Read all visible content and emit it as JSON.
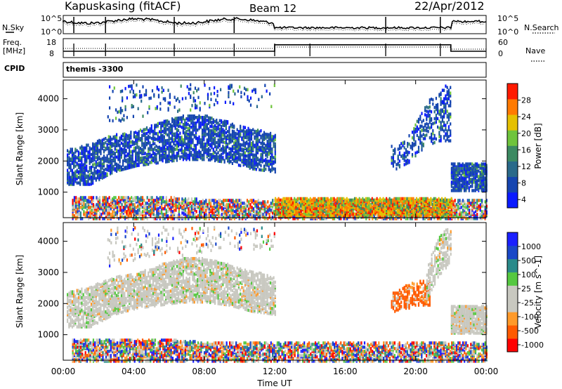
{
  "header": {
    "station": "Kapuskasing (fitACF)",
    "beam": "Beam 12",
    "date": "22/Apr/2012"
  },
  "summary": {
    "nsky_label": "N.Sky",
    "nsky_ticks": [
      "10^5",
      "10^0"
    ],
    "nsearch_label": "N.Search",
    "nsearch_ticks": [
      "10^5",
      "10^0"
    ],
    "freq_label_1": "Freq.",
    "freq_label_2": "[MHz]",
    "freq_ticks": [
      "18",
      "8"
    ],
    "nave_label": "Nave",
    "nave_ticks": [
      "60",
      "0"
    ],
    "cpid_label": "CPID",
    "cpid_value": "themis -3300",
    "freq_trace": [
      [
        0,
        9.2
      ],
      [
        12.0,
        9.2
      ],
      [
        12.0,
        14.6
      ],
      [
        22.0,
        14.6
      ],
      [
        22.0,
        9.2
      ],
      [
        24.0,
        9.2
      ]
    ]
  },
  "colors": {
    "power": [
      "#0a1aff",
      "#1545b0",
      "#2a6a8a",
      "#3c8a62",
      "#6fc43c",
      "#e5c000",
      "#ff7a00",
      "#ff1a00"
    ],
    "velocity": [
      "#ff0000",
      "#ff5a00",
      "#ff9a2a",
      "#c8c8c0",
      "#c8c8c0",
      "#55c840",
      "#2a8a8a",
      "#1a48c8",
      "#1a20ff"
    ]
  },
  "chart_data": [
    {
      "type": "heatmap",
      "panel": "power",
      "ylabel": "Slant Range [km]",
      "yticks": [
        "4000",
        "3000",
        "2000",
        "1000"
      ],
      "ylim": [
        180,
        4600
      ],
      "xlim": [
        0,
        24
      ],
      "colorbar": {
        "label": "Power [dB]",
        "ticks": [
          "28",
          "24",
          "20",
          "16",
          "12",
          "8",
          "4"
        ],
        "range": [
          0,
          30
        ]
      },
      "regions": [
        {
          "t0": 0.2,
          "t1": 12.0,
          "r_lo": [
            1300,
            1300,
            1700,
            1900,
            2000,
            2100,
            2100,
            2000,
            1800,
            1700
          ],
          "r_hi": [
            2400,
            2600,
            2900,
            3000,
            3300,
            3500,
            3500,
            3300,
            3100,
            2900
          ],
          "density": 0.55,
          "level": "low"
        },
        {
          "t0": 0.5,
          "t1": 24.0,
          "r_lo": [
            200,
            200,
            200,
            200,
            200,
            200,
            200,
            200,
            200,
            200
          ],
          "r_hi": [
            900,
            900,
            900,
            800,
            800,
            800,
            800,
            800,
            800,
            800
          ],
          "density": 0.6,
          "level": "mixed"
        },
        {
          "t0": 2.5,
          "t1": 12.0,
          "r_lo": [
            3200,
            3400,
            3500,
            3600,
            3600,
            3700,
            3800,
            3800,
            3800,
            3800
          ],
          "r_hi": [
            4500,
            4500,
            4500,
            4500,
            4500,
            4500,
            4500,
            4500,
            4500,
            4500
          ],
          "density": 0.08,
          "level": "low"
        },
        {
          "t0": 18.6,
          "t1": 22.0,
          "r_lo": [
            1800,
            1800,
            1900,
            2000,
            2300,
            2500,
            2600,
            2700,
            2700,
            2700
          ],
          "r_hi": [
            2600,
            2600,
            2700,
            3000,
            3400,
            3800,
            4100,
            4300,
            4500,
            4500
          ],
          "density": 0.3,
          "level": "low"
        },
        {
          "t0": 22.0,
          "t1": 24.0,
          "r_lo": [
            1100,
            1100,
            1100,
            1100,
            1100,
            1100,
            1100,
            1100,
            1100,
            1100
          ],
          "r_hi": [
            2000,
            2000,
            2000,
            2000,
            2000,
            2000,
            2000,
            2000,
            2000,
            2000
          ],
          "density": 0.7,
          "level": "low"
        },
        {
          "t0": 12.0,
          "t1": 22.0,
          "r_lo": [
            300,
            300,
            300,
            300,
            300,
            300,
            300,
            300,
            300,
            300
          ],
          "r_hi": [
            850,
            850,
            850,
            850,
            850,
            850,
            850,
            850,
            850,
            850
          ],
          "density": 0.75,
          "level": "high"
        }
      ]
    },
    {
      "type": "heatmap",
      "panel": "velocity",
      "ylabel": "Slant Range [km]",
      "yticks": [
        "4000",
        "3000",
        "2000",
        "1000"
      ],
      "ylim": [
        180,
        4600
      ],
      "xlim": [
        0,
        24
      ],
      "xlabel": "Time UT",
      "xticks": [
        "00:00",
        "04:00",
        "08:00",
        "12:00",
        "16:00",
        "20:00",
        "00:00"
      ],
      "colorbar": {
        "label": "Velocity [m s^-1]",
        "ticks": [
          "1000",
          "500",
          "100",
          "25",
          "-25",
          "-100",
          "-500",
          "-1000"
        ]
      },
      "regions": [
        {
          "t0": 0.2,
          "t1": 12.0,
          "r_lo": [
            1300,
            1300,
            1700,
            1900,
            2000,
            2100,
            2100,
            2000,
            1800,
            1700
          ],
          "r_hi": [
            2400,
            2600,
            2900,
            3000,
            3300,
            3500,
            3500,
            3300,
            3100,
            2900
          ],
          "density": 0.6,
          "level": "gray"
        },
        {
          "t0": 0.5,
          "t1": 24.0,
          "r_lo": [
            200,
            200,
            200,
            200,
            200,
            200,
            200,
            200,
            200,
            200
          ],
          "r_hi": [
            900,
            900,
            900,
            800,
            800,
            800,
            800,
            800,
            800,
            800
          ],
          "density": 0.6,
          "level": "mixed"
        },
        {
          "t0": 2.5,
          "t1": 12.0,
          "r_lo": [
            3200,
            3400,
            3500,
            3600,
            3600,
            3700,
            3800,
            3800,
            3800,
            3800
          ],
          "r_hi": [
            4500,
            4500,
            4500,
            4500,
            4500,
            4500,
            4500,
            4500,
            4500,
            4500
          ],
          "density": 0.1,
          "level": "mixedgray"
        },
        {
          "t0": 18.6,
          "t1": 20.8,
          "r_lo": [
            1800,
            1800,
            1800,
            1900,
            1900,
            2000,
            2000,
            2000,
            2000,
            2000
          ],
          "r_hi": [
            2400,
            2400,
            2500,
            2600,
            2700,
            2800,
            2800,
            2800,
            2800,
            2800
          ],
          "density": 0.45,
          "level": "orange"
        },
        {
          "t0": 20.6,
          "t1": 22.0,
          "r_lo": [
            2200,
            2300,
            2500,
            2700,
            2900,
            3000,
            3100,
            3200,
            3300,
            3400
          ],
          "r_hi": [
            3200,
            3400,
            3700,
            3900,
            4100,
            4300,
            4400,
            4500,
            4500,
            4500
          ],
          "density": 0.4,
          "level": "gray"
        },
        {
          "t0": 22.0,
          "t1": 24.0,
          "r_lo": [
            1100,
            1100,
            1100,
            1100,
            1100,
            1100,
            1100,
            1100,
            1100,
            1100
          ],
          "r_hi": [
            2000,
            2000,
            2000,
            2000,
            2000,
            2000,
            2000,
            2000,
            2000,
            2000
          ],
          "density": 0.75,
          "level": "gray"
        }
      ]
    }
  ]
}
